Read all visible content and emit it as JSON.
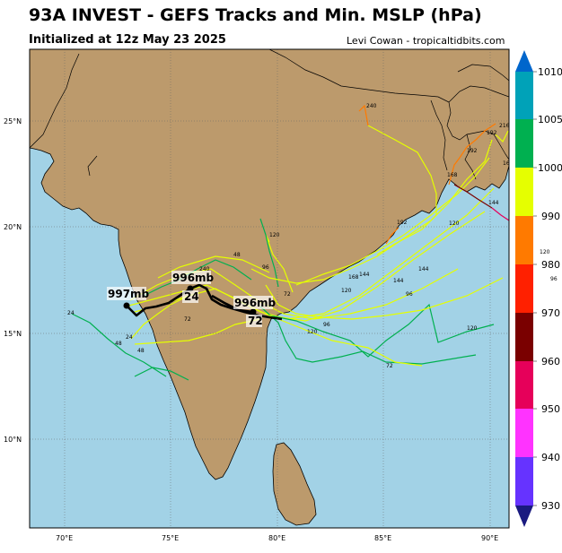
{
  "header": {
    "title": "93A INVEST - GEFS Tracks and Min. MSLP (hPa)",
    "initialized": "Initialized at 12z May 23 2025",
    "credit": "Levi Cowan - tropicaltidbits.com"
  },
  "map": {
    "lon_range": [
      68.3,
      90.9
    ],
    "lat_range": [
      5.9,
      28.6
    ],
    "lon_ticks": [
      "70°E",
      "75°E",
      "80°E",
      "85°E",
      "90°E"
    ],
    "lat_ticks": [
      "25°N",
      "20°N",
      "15°N",
      "10°N"
    ],
    "colors": {
      "ocean": "#a2d2e6",
      "land": "#bc9a6c",
      "border": "#000000"
    },
    "labels": {
      "main_997": "997mb",
      "main_996a": "996mb",
      "main_996b": "996mb",
      "hour_24": "24",
      "hour_72": "72"
    },
    "track_hours": [
      "24",
      "48",
      "72",
      "96",
      "120",
      "144",
      "168",
      "192",
      "216",
      "240",
      "24",
      "48",
      "72",
      "96",
      "120",
      "144",
      "168",
      "192",
      "120",
      "96",
      "48",
      "72",
      "120",
      "144",
      "192",
      "168",
      "144",
      "240",
      "120"
    ]
  },
  "colorbar": {
    "ticks": [
      "1010",
      "1005",
      "1000",
      "990",
      "980",
      "970",
      "960",
      "950",
      "940",
      "930"
    ],
    "side_labels": [
      "120",
      "96"
    ],
    "segments": [
      {
        "value": "1010",
        "color": "#00a2b8"
      },
      {
        "value": "1005",
        "color": "#00b050"
      },
      {
        "value": "1000",
        "color": "#e5ff00"
      },
      {
        "value": "990",
        "color": "#ff7a00"
      },
      {
        "value": "980",
        "color": "#ff2000"
      },
      {
        "value": "970",
        "color": "#7a0000"
      },
      {
        "value": "960",
        "color": "#e6005a"
      },
      {
        "value": "950",
        "color": "#ff33ff"
      },
      {
        "value": "940",
        "color": "#6633ff"
      },
      {
        "value": "930",
        "color": "#1a1a80"
      }
    ]
  }
}
